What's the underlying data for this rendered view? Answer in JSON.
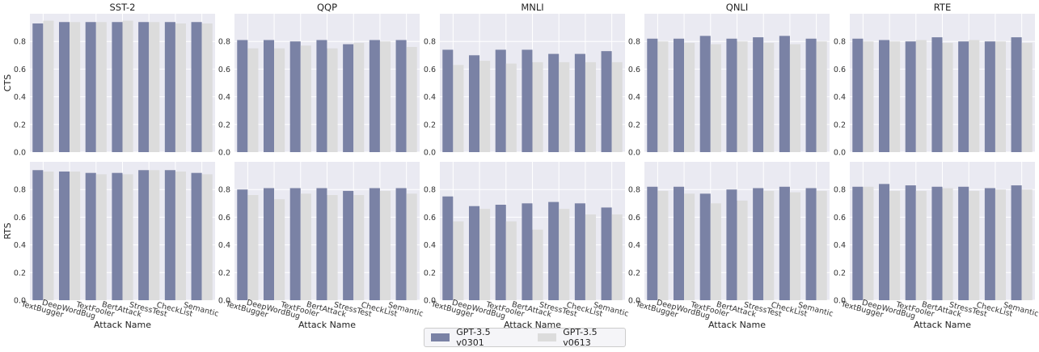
{
  "chart_data": {
    "type": "bar",
    "rows": [
      "CTS",
      "RTS"
    ],
    "columns": [
      "SST-2",
      "QQP",
      "MNLI",
      "QNLI",
      "RTE"
    ],
    "categories": [
      "TextBugger",
      "DeepWordBug",
      "TextFooler",
      "BertAttack",
      "StressTest",
      "CheckList",
      "Semantic"
    ],
    "xlabel": "Attack Name",
    "ylim": [
      0,
      1.0
    ],
    "yticks": [
      0.0,
      0.2,
      0.4,
      0.6,
      0.8
    ],
    "ytick_labels": [
      "0.0",
      "0.2",
      "0.4",
      "0.6",
      "0.8"
    ],
    "grid": true,
    "legend_position": "bottom-center",
    "series_names": [
      "GPT-3.5 v0301",
      "GPT-3.5 v0613"
    ],
    "series_colors": [
      "#7a82a5",
      "#dcdcdc"
    ],
    "panels": [
      {
        "row": "CTS",
        "dataset": "SST-2",
        "series": [
          {
            "name": "GPT-3.5 v0301",
            "values": [
              0.93,
              0.94,
              0.94,
              0.94,
              0.94,
              0.94,
              0.94
            ]
          },
          {
            "name": "GPT-3.5 v0613",
            "values": [
              0.95,
              0.94,
              0.94,
              0.95,
              0.94,
              0.93,
              0.93
            ]
          }
        ]
      },
      {
        "row": "CTS",
        "dataset": "QQP",
        "series": [
          {
            "name": "GPT-3.5 v0301",
            "values": [
              0.81,
              0.81,
              0.8,
              0.81,
              0.78,
              0.81,
              0.81
            ]
          },
          {
            "name": "GPT-3.5 v0613",
            "values": [
              0.75,
              0.75,
              0.77,
              0.75,
              0.79,
              0.8,
              0.76
            ]
          }
        ]
      },
      {
        "row": "CTS",
        "dataset": "MNLI",
        "series": [
          {
            "name": "GPT-3.5 v0301",
            "values": [
              0.74,
              0.7,
              0.74,
              0.74,
              0.71,
              0.71,
              0.73
            ]
          },
          {
            "name": "GPT-3.5 v0613",
            "values": [
              0.63,
              0.66,
              0.64,
              0.65,
              0.65,
              0.65,
              0.65
            ]
          }
        ]
      },
      {
        "row": "CTS",
        "dataset": "QNLI",
        "series": [
          {
            "name": "GPT-3.5 v0301",
            "values": [
              0.82,
              0.82,
              0.84,
              0.82,
              0.83,
              0.84,
              0.82
            ]
          },
          {
            "name": "GPT-3.5 v0613",
            "values": [
              0.8,
              0.79,
              0.78,
              0.8,
              0.79,
              0.78,
              0.8
            ]
          }
        ]
      },
      {
        "row": "CTS",
        "dataset": "RTE",
        "series": [
          {
            "name": "GPT-3.5 v0301",
            "values": [
              0.82,
              0.81,
              0.8,
              0.83,
              0.8,
              0.8,
              0.83
            ]
          },
          {
            "name": "GPT-3.5 v0613",
            "values": [
              0.8,
              0.8,
              0.81,
              0.79,
              0.81,
              0.8,
              0.79
            ]
          }
        ]
      },
      {
        "row": "RTS",
        "dataset": "SST-2",
        "series": [
          {
            "name": "GPT-3.5 v0301",
            "values": [
              0.94,
              0.93,
              0.92,
              0.92,
              0.94,
              0.94,
              0.92
            ]
          },
          {
            "name": "GPT-3.5 v0613",
            "values": [
              0.93,
              0.93,
              0.91,
              0.91,
              0.94,
              0.93,
              0.91
            ]
          }
        ]
      },
      {
        "row": "RTS",
        "dataset": "QQP",
        "series": [
          {
            "name": "GPT-3.5 v0301",
            "values": [
              0.8,
              0.81,
              0.81,
              0.81,
              0.79,
              0.81,
              0.81
            ]
          },
          {
            "name": "GPT-3.5 v0613",
            "values": [
              0.76,
              0.73,
              0.77,
              0.76,
              0.76,
              0.79,
              0.77
            ]
          }
        ]
      },
      {
        "row": "RTS",
        "dataset": "MNLI",
        "series": [
          {
            "name": "GPT-3.5 v0301",
            "values": [
              0.75,
              0.68,
              0.69,
              0.7,
              0.71,
              0.7,
              0.67
            ]
          },
          {
            "name": "GPT-3.5 v0613",
            "values": [
              0.57,
              0.66,
              0.57,
              0.51,
              0.66,
              0.62,
              0.62
            ]
          }
        ]
      },
      {
        "row": "RTS",
        "dataset": "QNLI",
        "series": [
          {
            "name": "GPT-3.5 v0301",
            "values": [
              0.82,
              0.82,
              0.77,
              0.8,
              0.81,
              0.82,
              0.81
            ]
          },
          {
            "name": "GPT-3.5 v0613",
            "values": [
              0.79,
              0.77,
              0.7,
              0.72,
              0.79,
              0.78,
              0.79
            ]
          }
        ]
      },
      {
        "row": "RTS",
        "dataset": "RTE",
        "series": [
          {
            "name": "GPT-3.5 v0301",
            "values": [
              0.82,
              0.84,
              0.83,
              0.82,
              0.82,
              0.81,
              0.83
            ]
          },
          {
            "name": "GPT-3.5 v0613",
            "values": [
              0.82,
              0.79,
              0.79,
              0.81,
              0.79,
              0.8,
              0.8
            ]
          }
        ]
      }
    ]
  }
}
